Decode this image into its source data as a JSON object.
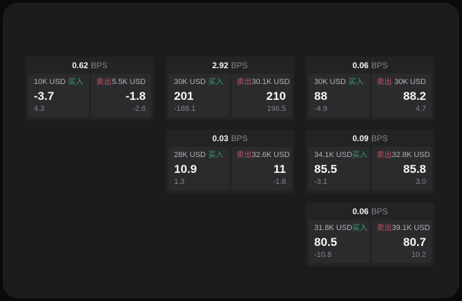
{
  "labels": {
    "bps": "BPS",
    "buy": "买入",
    "sell": "卖出"
  },
  "colors": {
    "window_bg": "#1c1c1e",
    "card_bg": "#232325",
    "panel_bg": "#2b2b2e",
    "buy_green": "#3ba169",
    "sell_red": "#bc5464",
    "text_primary": "#f7f7f7",
    "text_secondary": "#85858a",
    "text_amount": "#b4b4b8"
  },
  "cards": [
    {
      "bps_value": "0.62",
      "buy": {
        "amount": "10K USD",
        "main": "-3.7",
        "sub": "4.3"
      },
      "sell": {
        "amount": "5.5K USD",
        "main": "-1.8",
        "sub": "-2.6"
      }
    },
    {
      "bps_value": "2.92",
      "buy": {
        "amount": "30K USD",
        "main": "201",
        "sub": "-188.1"
      },
      "sell": {
        "amount": "30.1K USD",
        "main": "210",
        "sub": "196.5"
      }
    },
    {
      "bps_value": "0.06",
      "buy": {
        "amount": "30K USD",
        "main": "88",
        "sub": "-4.9"
      },
      "sell": {
        "amount": "30K USD",
        "main": "88.2",
        "sub": "4.7"
      }
    },
    {
      "bps_value": "0.03",
      "buy": {
        "amount": "28K USD",
        "main": "10.9",
        "sub": "1.3"
      },
      "sell": {
        "amount": "32.6K USD",
        "main": "11",
        "sub": "-1.8"
      }
    },
    {
      "bps_value": "0.09",
      "buy": {
        "amount": "34.1K USD",
        "main": "85.5",
        "sub": "-3.1"
      },
      "sell": {
        "amount": "32.8K USD",
        "main": "85.8",
        "sub": "3.0"
      }
    },
    {
      "bps_value": "0.06",
      "buy": {
        "amount": "31.8K USD",
        "main": "80.5",
        "sub": "-10.8"
      },
      "sell": {
        "amount": "39.1K USD",
        "main": "80.7",
        "sub": "10.2"
      }
    }
  ]
}
